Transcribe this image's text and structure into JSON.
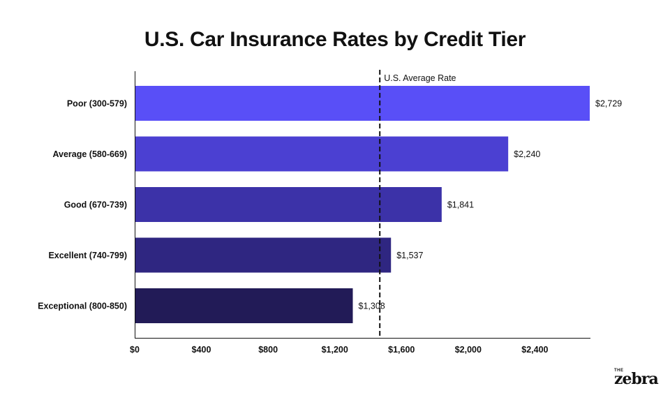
{
  "chart_data": {
    "type": "bar",
    "orientation": "horizontal",
    "title": "U.S. Car Insurance Rates by Credit Tier",
    "xlabel": "",
    "ylabel": "",
    "categories": [
      "Poor (300-579)",
      "Average (580-669)",
      "Good (670-739)",
      "Excellent (740-799)",
      "Exceptional (800-850)"
    ],
    "values": [
      2729,
      2240,
      1841,
      1537,
      1308
    ],
    "value_labels": [
      "$2,729",
      "$2,240",
      "$1,841",
      "$1,537",
      "$1,308"
    ],
    "colors": [
      "#594ff7",
      "#4b40d2",
      "#3c32a8",
      "#2f2681",
      "#221b57"
    ],
    "xlim": [
      0,
      2729
    ],
    "xticks": [
      0,
      400,
      800,
      1200,
      1600,
      2000,
      2400
    ],
    "xtick_labels": [
      "$0",
      "$400",
      "$800",
      "$1,200",
      "$1,600",
      "$2,000",
      "$2,400"
    ],
    "reference_line": {
      "value": 1470,
      "label": "U.S. Average Rate",
      "style": "dashed"
    },
    "grid": false,
    "legend": "none"
  },
  "brand": {
    "the": "THE",
    "name": "zebra"
  }
}
